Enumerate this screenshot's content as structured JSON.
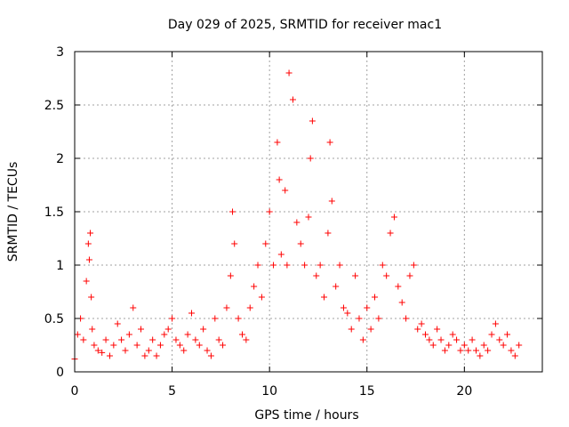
{
  "chart_data": {
    "type": "scatter",
    "title": "Day 029 of 2025, SRMTID for receiver mac1",
    "xlabel": "GPS time / hours",
    "ylabel": "SRMTID / TECUs",
    "xlim": [
      0,
      24
    ],
    "ylim": [
      0,
      3
    ],
    "x_ticks": [
      0,
      5,
      10,
      15,
      20
    ],
    "x_tick_labels": [
      "0",
      "5",
      "10",
      "15",
      "20"
    ],
    "y_ticks": [
      0,
      0.5,
      1,
      1.5,
      2,
      2.5,
      3
    ],
    "y_tick_labels": [
      "0",
      "0.5",
      "1",
      "1.5",
      "2",
      "2.5",
      "3"
    ],
    "grid": true,
    "marker": "+",
    "color": "#ff0000",
    "series": [
      {
        "name": "SRMTID",
        "x": [
          0.0,
          0.15,
          0.3,
          0.45,
          0.6,
          0.7,
          0.75,
          0.8,
          0.85,
          0.9,
          1.0,
          1.2,
          1.4,
          1.6,
          1.8,
          2.0,
          2.2,
          2.4,
          2.6,
          2.8,
          3.0,
          3.2,
          3.4,
          3.6,
          3.8,
          4.0,
          4.2,
          4.4,
          4.6,
          4.8,
          5.0,
          5.2,
          5.4,
          5.6,
          5.8,
          6.0,
          6.2,
          6.4,
          6.6,
          6.8,
          7.0,
          7.2,
          7.4,
          7.6,
          7.8,
          8.0,
          8.1,
          8.2,
          8.4,
          8.6,
          8.8,
          9.0,
          9.2,
          9.4,
          9.6,
          9.8,
          10.0,
          10.2,
          10.4,
          10.5,
          10.6,
          10.8,
          10.9,
          11.0,
          11.2,
          11.4,
          11.6,
          11.8,
          12.0,
          12.1,
          12.2,
          12.4,
          12.6,
          12.8,
          13.0,
          13.1,
          13.2,
          13.4,
          13.6,
          13.8,
          14.0,
          14.2,
          14.4,
          14.6,
          14.8,
          15.0,
          15.2,
          15.4,
          15.6,
          15.8,
          16.0,
          16.2,
          16.4,
          16.6,
          16.8,
          17.0,
          17.2,
          17.4,
          17.6,
          17.8,
          18.0,
          18.2,
          18.4,
          18.6,
          18.8,
          19.0,
          19.2,
          19.4,
          19.6,
          19.8,
          20.0,
          20.2,
          20.4,
          20.6,
          20.8,
          21.0,
          21.2,
          21.4,
          21.6,
          21.8,
          22.0,
          22.2,
          22.4,
          22.6,
          22.8
        ],
        "y": [
          0.12,
          0.35,
          0.5,
          0.3,
          0.85,
          1.2,
          1.05,
          1.3,
          0.7,
          0.4,
          0.25,
          0.2,
          0.18,
          0.3,
          0.15,
          0.25,
          0.45,
          0.3,
          0.2,
          0.35,
          0.6,
          0.25,
          0.4,
          0.15,
          0.2,
          0.3,
          0.15,
          0.25,
          0.35,
          0.4,
          0.5,
          0.3,
          0.25,
          0.2,
          0.35,
          0.55,
          0.3,
          0.25,
          0.4,
          0.2,
          0.15,
          0.5,
          0.3,
          0.25,
          0.6,
          0.9,
          1.5,
          1.2,
          0.5,
          0.35,
          0.3,
          0.6,
          0.8,
          1.0,
          0.7,
          1.2,
          1.5,
          1.0,
          2.15,
          1.8,
          1.1,
          1.7,
          1.0,
          2.8,
          2.55,
          1.4,
          1.2,
          1.0,
          1.45,
          2.0,
          2.35,
          0.9,
          1.0,
          0.7,
          1.3,
          2.15,
          1.6,
          0.8,
          1.0,
          0.6,
          0.55,
          0.4,
          0.9,
          0.5,
          0.3,
          0.6,
          0.4,
          0.7,
          0.5,
          1.0,
          0.9,
          1.3,
          1.45,
          0.8,
          0.65,
          0.5,
          0.9,
          1.0,
          0.4,
          0.45,
          0.35,
          0.3,
          0.25,
          0.4,
          0.3,
          0.2,
          0.25,
          0.35,
          0.3,
          0.2,
          0.25,
          0.2,
          0.3,
          0.2,
          0.15,
          0.25,
          0.2,
          0.35,
          0.45,
          0.3,
          0.25,
          0.35,
          0.2,
          0.15,
          0.25
        ]
      }
    ]
  }
}
